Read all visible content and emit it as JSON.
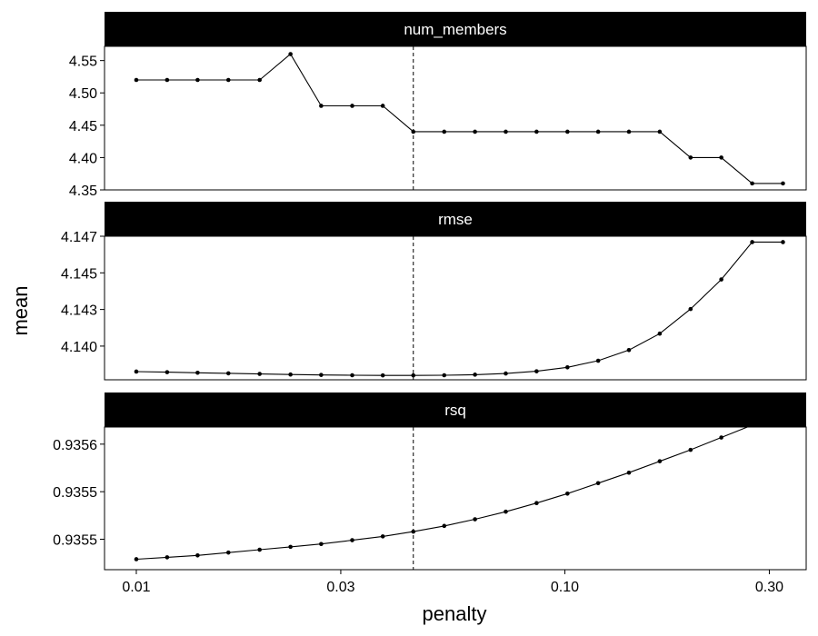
{
  "chart_data": {
    "type": "line",
    "layout": "faceted",
    "xlabel": "penalty",
    "ylabel": "mean",
    "x_scale": "log10",
    "xlim": [
      0.00843,
      0.3657
    ],
    "x_ticks": [
      0.01,
      0.03,
      0.1,
      0.3
    ],
    "x_tick_labels": [
      "0.01",
      "0.03",
      "0.10",
      "0.30"
    ],
    "reference_line_x": 0.0443,
    "grid": false,
    "x": [
      0.01,
      0.0118,
      0.0139,
      0.0164,
      0.0194,
      0.0229,
      0.027,
      0.0319,
      0.0376,
      0.0443,
      0.0523,
      0.0617,
      0.0728,
      0.0859,
      0.1014,
      0.1196,
      0.1411,
      0.1665,
      0.1965,
      0.2318,
      0.2736,
      0.3228
    ],
    "panels": [
      {
        "strip": "num_members",
        "ylim": [
          4.35,
          4.572
        ],
        "y_ticks": [
          4.35,
          4.4,
          4.45,
          4.5,
          4.55
        ],
        "y_tick_labels": [
          "4.35",
          "4.40",
          "4.45",
          "4.50",
          "4.55"
        ],
        "values": [
          4.52,
          4.52,
          4.52,
          4.52,
          4.52,
          4.56,
          4.48,
          4.48,
          4.48,
          4.44,
          4.44,
          4.44,
          4.44,
          4.44,
          4.44,
          4.44,
          4.44,
          4.44,
          4.4,
          4.4,
          4.36,
          4.36
        ]
      },
      {
        "strip": "rmse",
        "ylim": [
          4.1377,
          4.1475
        ],
        "y_ticks": [
          4.14,
          4.1425,
          4.145,
          4.1475
        ],
        "y_tick_labels": [
          "4.140",
          "4.143",
          "4.145",
          "4.147"
        ],
        "values": [
          4.13826,
          4.13822,
          4.13818,
          4.13814,
          4.1381,
          4.13806,
          4.13803,
          4.13801,
          4.138,
          4.138,
          4.13801,
          4.13805,
          4.13813,
          4.13828,
          4.13855,
          4.139,
          4.13973,
          4.14085,
          4.14253,
          4.14455,
          4.1471,
          4.1471
        ]
      },
      {
        "strip": "rsq",
        "ylim": [
          0.935468,
          0.935618
        ],
        "y_ticks": [
          0.9355,
          0.93555,
          0.9356
        ],
        "y_tick_labels": [
          "0.9355",
          "0.9355",
          "0.9356"
        ],
        "values": [
          0.935479,
          0.935481,
          0.935483,
          0.935486,
          0.935489,
          0.935492,
          0.935495,
          0.935499,
          0.935503,
          0.935508,
          0.935514,
          0.935521,
          0.935529,
          0.935538,
          0.935548,
          0.935559,
          0.93557,
          0.935582,
          0.935594,
          0.935607,
          0.93562,
          0.93562
        ]
      }
    ]
  }
}
